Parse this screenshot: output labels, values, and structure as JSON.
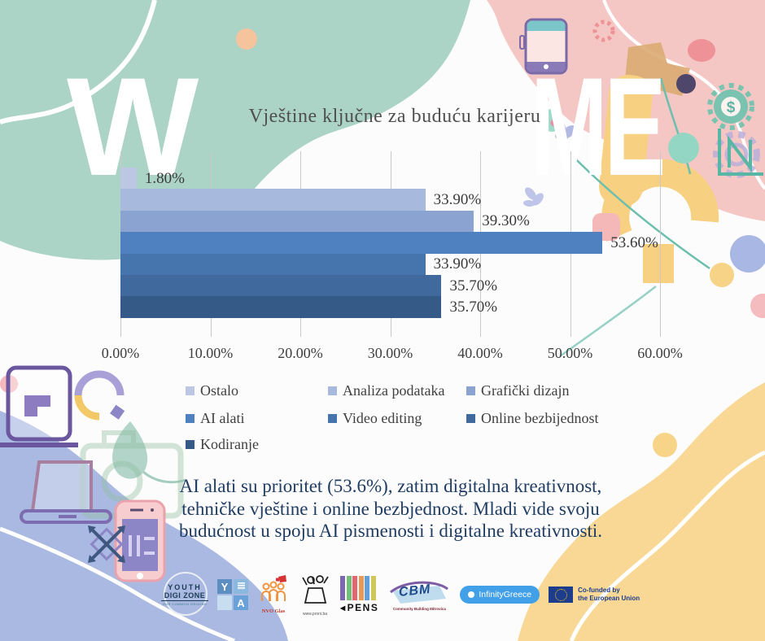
{
  "chart_data": {
    "type": "bar",
    "orientation": "horizontal",
    "title": "Vještine ključne za buduću karijeru",
    "categories": [
      "Ostalo",
      "Analiza podataka",
      "Grafički dizajn",
      "AI alati",
      "Video editing",
      "Online bezbijednost",
      "Kodiranje"
    ],
    "values": [
      1.8,
      33.9,
      39.3,
      53.6,
      33.9,
      35.7,
      35.7
    ],
    "labels": [
      "1.80%",
      "33.90%",
      "39.30%",
      "53.60%",
      "33.90%",
      "35.70%",
      "35.70%"
    ],
    "colors": [
      "#bcc7e4",
      "#a7b9dd",
      "#8aa3d1",
      "#4f80c0",
      "#4674ad",
      "#40699d",
      "#365a88"
    ],
    "x_ticks": [
      "0.00%",
      "10.00%",
      "20.00%",
      "30.00%",
      "40.00%",
      "50.00%",
      "60.00%"
    ],
    "xlim": [
      0,
      60
    ],
    "grid": true,
    "legend_position": "bottom"
  },
  "watermark": {
    "left": "W",
    "right": "ME"
  },
  "caption": {
    "lines": [
      "AI alati su prioritet (53.6%), zatim digitalna kreativnost,",
      "tehničke vještine i online bezbjednost. Mladi vide svoju",
      "budućnost u spoju AI pismenosti i digitalne kreativnosti."
    ],
    "color": "#1f3c63"
  },
  "footer": {
    "logos": [
      {
        "name": "youth-digi-zone",
        "line1": "YOUTH",
        "line2": "DIGI ZONE",
        "line3": "OUR COMMON GROUND"
      },
      {
        "name": "yda",
        "tl": "Y",
        "br": "A"
      },
      {
        "name": "nvo-glas",
        "label": "NVO Glas"
      },
      {
        "name": "proni",
        "label": "www.proni.ba"
      },
      {
        "name": "pens",
        "label": "PENS",
        "arrow": "◀",
        "stripes": [
          "#7b68ae",
          "#77bd7a",
          "#e4646f",
          "#eb9a55",
          "#64a0d8",
          "#cfc75a"
        ]
      },
      {
        "name": "cbm",
        "label": "CBM",
        "sub": "Community Building Mitrovica"
      },
      {
        "name": "infinity-greece",
        "label": "InfinityGreece"
      },
      {
        "name": "eu",
        "line1": "Co-funded by",
        "line2": "the European Union"
      }
    ]
  },
  "palette": {
    "teal_blob": "#abd3c6",
    "pink_blob": "#f5c7c4",
    "blue_blob": "#aab9e1",
    "yellow_blob": "#f8d894",
    "caption_navy": "#1f3c63"
  }
}
